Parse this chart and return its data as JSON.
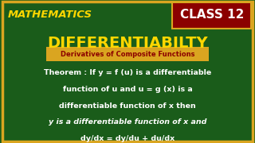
{
  "bg_color": "#1a5c1a",
  "border_color": "#DAA520",
  "title_math": "MATHEMATICS",
  "title_math_color": "#FFD700",
  "title_math_outline": "#8B6914",
  "class_text": "CLASS 12",
  "class_bg": "#8B0000",
  "class_text_color": "#ffffff",
  "main_title": "DIFFERENTIABILTY",
  "main_title_color": "#FFD700",
  "subtitle": "Derivatives of Composite Functions",
  "subtitle_bg": "#DAA520",
  "subtitle_text_color": "#8B0000",
  "theorem_line1": "Theorem : If y = f (u) is a differentiable",
  "theorem_line2": "function of u and u = g (x) is a",
  "theorem_line3": "differentiable function of x then",
  "theorem_line4": "y is a differentiable function of x and",
  "theorem_line5": "dy/dx = dy/du + du/dx",
  "theorem_color": "#ffffff",
  "figw": 3.2,
  "figh": 1.8,
  "dpi": 100
}
